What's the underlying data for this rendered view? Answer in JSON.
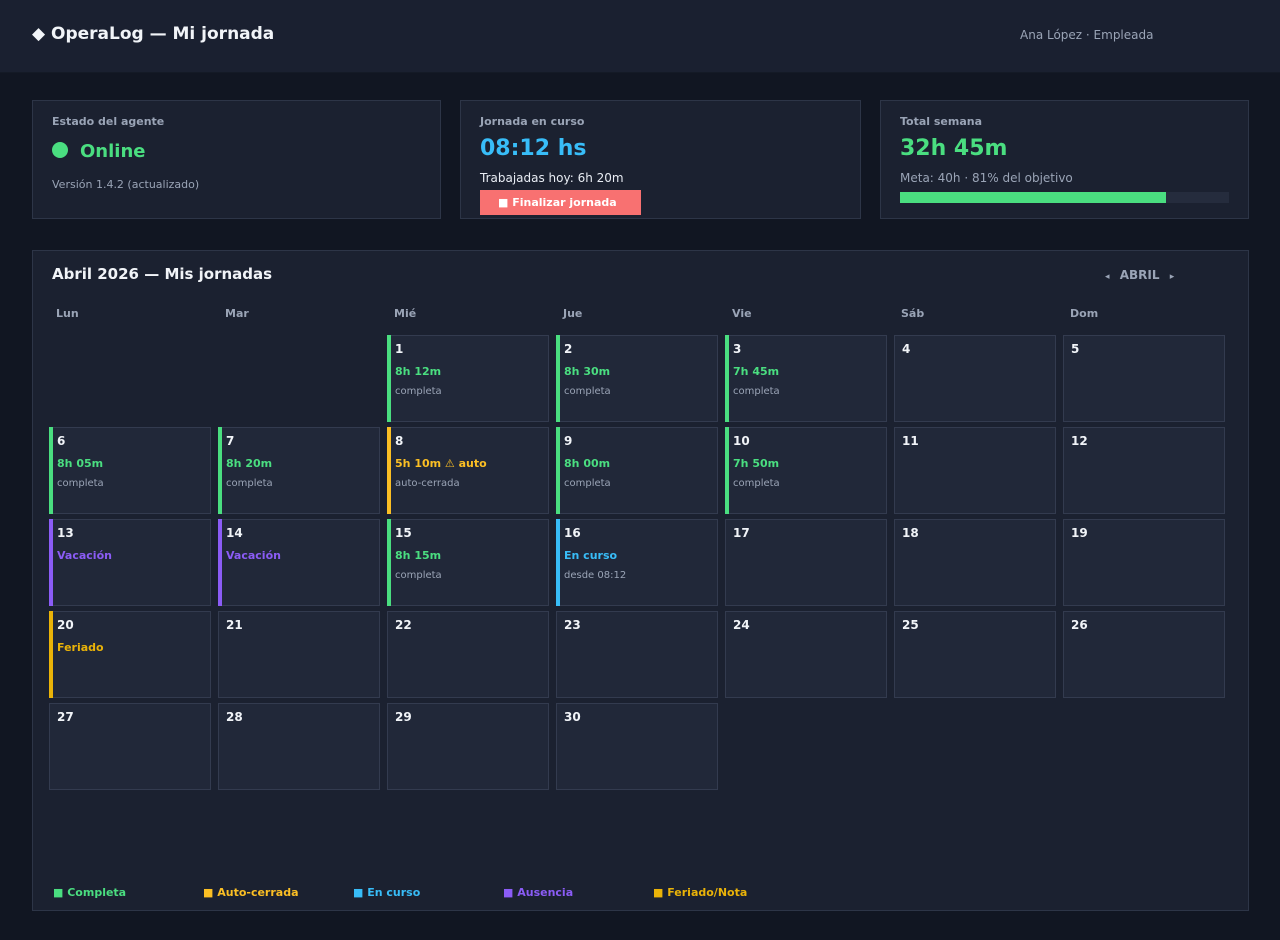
{
  "header": {
    "title": "◆ OperaLog — Mi jornada",
    "user": "Ana López · Empleada"
  },
  "status_card": {
    "label": "Estado del agente",
    "status": "Online",
    "version": "Versión 1.4.2 (actualizado)"
  },
  "shift_card": {
    "label": "Jornada en curso",
    "time": "08:12 hs",
    "worked_today": "Trabajadas hoy: 6h 20m",
    "end_button": "■ Finalizar jornada"
  },
  "week_card": {
    "label": "Total semana",
    "total": "32h 45m",
    "goal": "Meta: 40h  ·  81% del objetivo",
    "progress": 0.81
  },
  "calendar": {
    "title": "Abril 2026 — Mis jornadas",
    "nav_prev": "◂",
    "month": "ABRIL",
    "nav_next": "▸",
    "weekdays": [
      "Lun",
      "Mar",
      "Mié",
      "Jue",
      "Vie",
      "Sáb",
      "Dom"
    ],
    "days": [
      {
        "num": "1",
        "main": "8h 12m",
        "sub": "completa",
        "kind": "completa"
      },
      {
        "num": "2",
        "main": "8h 30m",
        "sub": "completa",
        "kind": "completa"
      },
      {
        "num": "3",
        "main": "7h 45m",
        "sub": "completa",
        "kind": "completa"
      },
      {
        "num": "4",
        "main": "",
        "sub": "",
        "kind": "empty"
      },
      {
        "num": "5",
        "main": "",
        "sub": "",
        "kind": "empty"
      },
      {
        "num": "6",
        "main": "8h 05m",
        "sub": "completa",
        "kind": "completa"
      },
      {
        "num": "7",
        "main": "8h 20m",
        "sub": "completa",
        "kind": "completa"
      },
      {
        "num": "8",
        "main": "5h 10m ⚠ auto",
        "sub": "auto-cerrada",
        "kind": "auto"
      },
      {
        "num": "9",
        "main": "8h 00m",
        "sub": "completa",
        "kind": "completa"
      },
      {
        "num": "10",
        "main": "7h 50m",
        "sub": "completa",
        "kind": "completa"
      },
      {
        "num": "11",
        "main": "",
        "sub": "",
        "kind": "empty"
      },
      {
        "num": "12",
        "main": "",
        "sub": "",
        "kind": "empty"
      },
      {
        "num": "13",
        "main": "Vacación",
        "sub": "",
        "kind": "ausencia"
      },
      {
        "num": "14",
        "main": "Vacación",
        "sub": "",
        "kind": "ausencia"
      },
      {
        "num": "15",
        "main": "8h 15m",
        "sub": "completa",
        "kind": "completa"
      },
      {
        "num": "16",
        "main": "En curso",
        "sub": "desde 08:12",
        "kind": "curso"
      },
      {
        "num": "17",
        "main": "",
        "sub": "",
        "kind": "empty"
      },
      {
        "num": "18",
        "main": "",
        "sub": "",
        "kind": "empty"
      },
      {
        "num": "19",
        "main": "",
        "sub": "",
        "kind": "empty"
      },
      {
        "num": "20",
        "main": "Feriado",
        "sub": "",
        "kind": "feriado"
      },
      {
        "num": "21",
        "main": "",
        "sub": "",
        "kind": "empty"
      },
      {
        "num": "22",
        "main": "",
        "sub": "",
        "kind": "empty"
      },
      {
        "num": "23",
        "main": "",
        "sub": "",
        "kind": "empty"
      },
      {
        "num": "24",
        "main": "",
        "sub": "",
        "kind": "empty"
      },
      {
        "num": "25",
        "main": "",
        "sub": "",
        "kind": "empty"
      },
      {
        "num": "26",
        "main": "",
        "sub": "",
        "kind": "empty"
      },
      {
        "num": "27",
        "main": "",
        "sub": "",
        "kind": "empty"
      },
      {
        "num": "28",
        "main": "",
        "sub": "",
        "kind": "empty"
      },
      {
        "num": "29",
        "main": "",
        "sub": "",
        "kind": "empty"
      },
      {
        "num": "30",
        "main": "",
        "sub": "",
        "kind": "empty"
      }
    ],
    "legend": [
      {
        "label": "■ Completa",
        "kind": "completa"
      },
      {
        "label": "■ Auto-cerrada",
        "kind": "auto"
      },
      {
        "label": "■ En curso",
        "kind": "curso"
      },
      {
        "label": "■ Ausencia",
        "kind": "ausencia"
      },
      {
        "label": "■ Feriado/Nota",
        "kind": "feriado"
      }
    ]
  },
  "colors": {
    "completa": "#4ade80",
    "auto": "#fbbf24",
    "curso": "#38bdf8",
    "ausencia": "#8b5cf6",
    "feriado": "#eab308",
    "danger": "#f87171"
  }
}
